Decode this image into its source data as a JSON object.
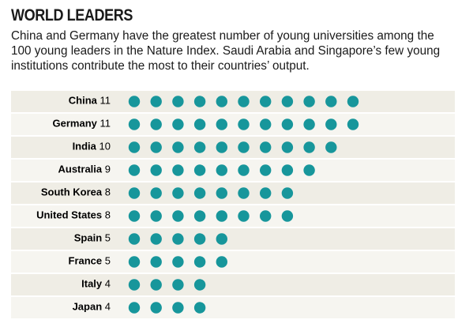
{
  "chart_data": {
    "type": "dot",
    "title": "WORLD LEADERS",
    "subtitle": "China and Germany have the greatest number of young universities among the 100 young leaders in the Nature Index. Saudi Arabia and Singapore’s few young institutions contribute the most to their countries’ output.",
    "categories": [
      "China",
      "Germany",
      "India",
      "Australia",
      "South Korea",
      "United States",
      "Spain",
      "France",
      "Italy",
      "Japan"
    ],
    "values": [
      11,
      11,
      10,
      9,
      8,
      8,
      5,
      5,
      4,
      4
    ],
    "color": "#17969b"
  }
}
